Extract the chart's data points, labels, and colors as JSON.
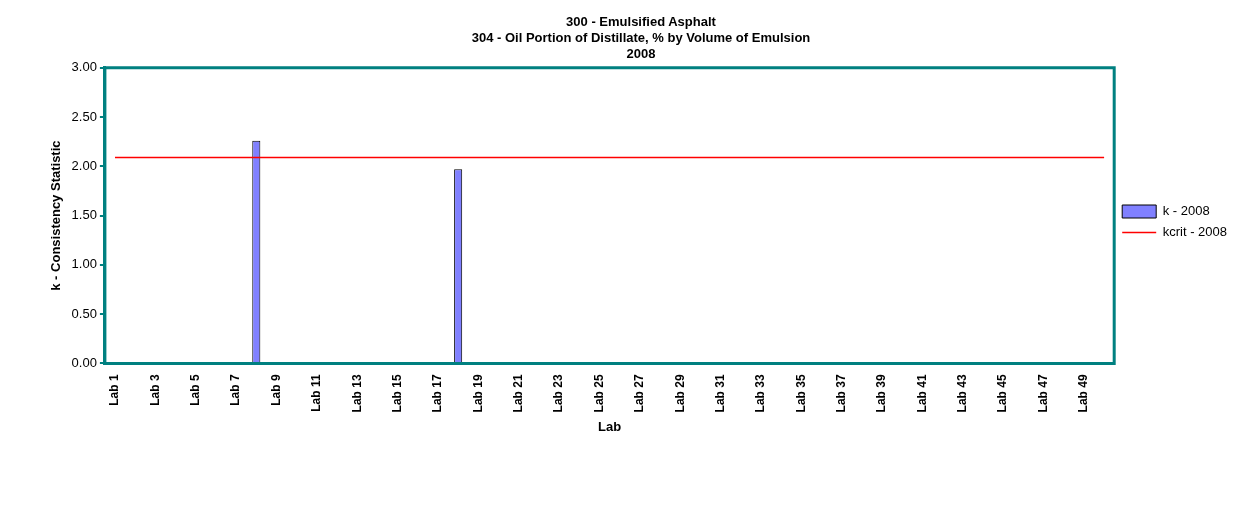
{
  "chart_data": {
    "type": "bar",
    "title": "300 - Emulsified Asphalt\n304 - Oil Portion of Distillate, % by Volume of Emulsion\n2008",
    "xlabel": "Lab",
    "ylabel": "k - Consistency Statistic",
    "categories": [
      "Lab 1",
      null,
      "Lab 3",
      null,
      "Lab 5",
      null,
      "Lab 7",
      null,
      "Lab 9",
      null,
      "Lab 11",
      null,
      "Lab 13",
      null,
      "Lab 15",
      null,
      "Lab 17",
      null,
      "Lab 19",
      null,
      "Lab 21",
      null,
      "Lab 23",
      null,
      "Lab 25",
      null,
      "Lab 27",
      null,
      "Lab 29",
      null,
      "Lab 31",
      null,
      "Lab 33",
      null,
      "Lab 35",
      null,
      "Lab 37",
      null,
      "Lab 39",
      null,
      "Lab 41",
      null,
      "Lab 43",
      null,
      "Lab 45",
      null,
      "Lab 47",
      null,
      "Lab 49",
      null
    ],
    "series": [
      {
        "name": "k - 2008",
        "color": "#8080ff",
        "values": [
          null,
          null,
          null,
          null,
          null,
          null,
          null,
          2.26,
          null,
          null,
          null,
          null,
          null,
          null,
          null,
          null,
          null,
          1.97,
          null,
          null,
          null,
          null,
          null,
          null,
          null,
          null,
          null,
          null,
          null,
          null,
          null,
          null,
          null,
          null,
          null,
          null,
          null,
          null,
          null,
          null,
          null,
          null,
          null,
          null,
          null,
          null,
          null,
          null,
          null,
          null
        ]
      },
      {
        "name": "kcrit - 2008",
        "type": "line",
        "color": "#ff0000",
        "values": [
          2.09,
          2.09,
          2.09,
          2.09,
          2.09,
          2.09,
          2.09,
          2.09,
          2.09,
          2.09,
          2.09,
          2.09,
          2.09,
          2.09,
          2.09,
          2.09,
          2.09,
          2.09,
          2.09,
          2.09,
          2.09,
          2.09,
          2.09,
          2.09,
          2.09,
          2.09,
          2.09,
          2.09,
          2.09,
          2.09,
          2.09,
          2.09,
          2.09,
          2.09,
          2.09,
          2.09,
          2.09,
          2.09,
          2.09,
          2.09,
          2.09,
          2.09,
          2.09,
          2.09,
          2.09,
          2.09,
          2.09,
          2.09,
          2.09,
          2.09
        ]
      }
    ],
    "ylim": [
      0,
      3
    ],
    "yticks": [
      {
        "value": 0,
        "label": "0.00"
      },
      {
        "value": 0.5,
        "label": "0.50"
      },
      {
        "value": 1,
        "label": "1.00"
      },
      {
        "value": 1.5,
        "label": "1.50"
      },
      {
        "value": 2,
        "label": "2.00"
      },
      {
        "value": 2.5,
        "label": "2.50"
      },
      {
        "value": 3,
        "label": "3.00"
      }
    ],
    "grid": false,
    "legend": "right",
    "marker": "none",
    "line_style": "solid"
  }
}
